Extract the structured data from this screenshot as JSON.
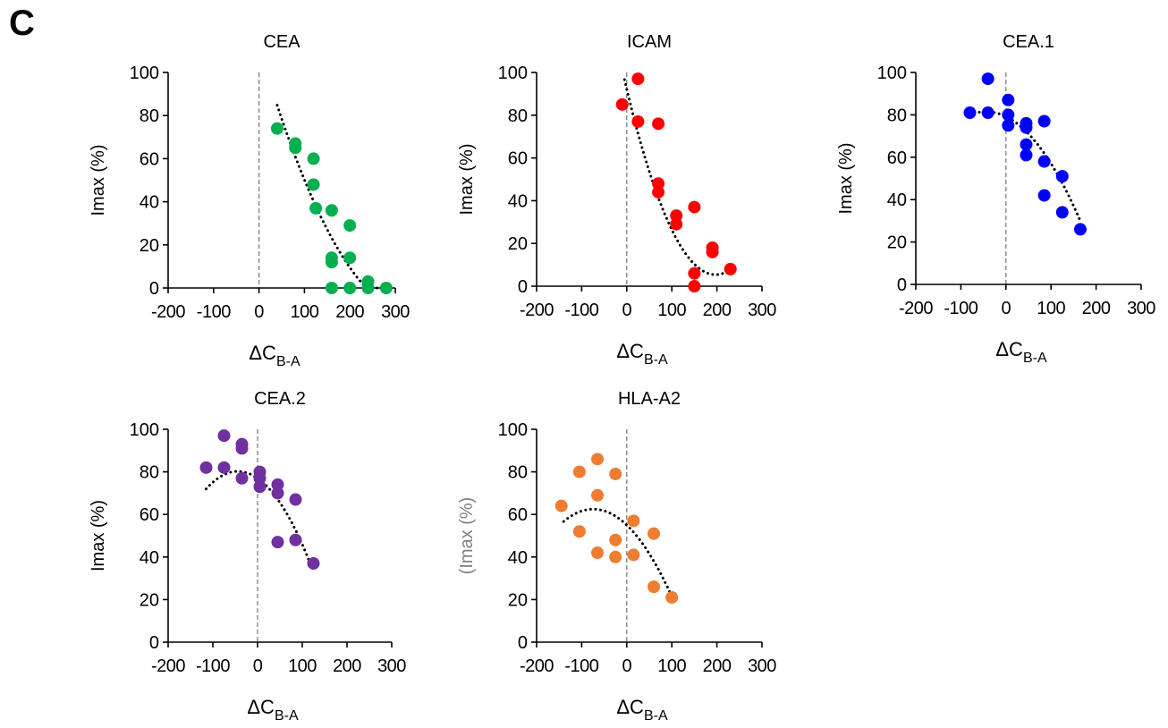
{
  "panel_label": "C",
  "styles": {
    "axis_color": "#000000",
    "zero_line_color": "#7f7f7f",
    "trend_color": "#000000"
  },
  "chart_data": [
    {
      "type": "scatter",
      "title": "CEA",
      "xlabel_main": "ΔC",
      "xlabel_sub": "B-A",
      "ylabel": "Imax (%)",
      "xlim": [
        -200,
        300
      ],
      "ylim": [
        0,
        100
      ],
      "xticks": [
        -200,
        -100,
        0,
        100,
        200,
        300
      ],
      "xtick_labels": [
        "-200",
        "-100",
        "0",
        "100",
        "200",
        "300"
      ],
      "yticks": [
        0,
        20,
        40,
        60,
        80,
        100
      ],
      "ytick_labels": [
        "0",
        "20",
        "40",
        "60",
        "80",
        "100"
      ],
      "color": "#00b050",
      "zero_line": true,
      "grid": false,
      "legend": "none",
      "points": [
        {
          "x": 40,
          "y": 74
        },
        {
          "x": 80,
          "y": 67
        },
        {
          "x": 80,
          "y": 65
        },
        {
          "x": 120,
          "y": 60
        },
        {
          "x": 120,
          "y": 48
        },
        {
          "x": 125,
          "y": 37
        },
        {
          "x": 160,
          "y": 36
        },
        {
          "x": 160,
          "y": 14
        },
        {
          "x": 160,
          "y": 12
        },
        {
          "x": 160,
          "y": 0
        },
        {
          "x": 200,
          "y": 29
        },
        {
          "x": 200,
          "y": 14
        },
        {
          "x": 200,
          "y": 0
        },
        {
          "x": 240,
          "y": 3
        },
        {
          "x": 240,
          "y": 0
        },
        {
          "x": 280,
          "y": 0
        }
      ],
      "trend": {
        "type": "polynomial",
        "coef": [
          112.15,
          -0.7257,
          0.001062
        ],
        "x_range": [
          40,
          260
        ]
      }
    },
    {
      "type": "scatter",
      "title": "ICAM",
      "xlabel_main": "ΔC",
      "xlabel_sub": "B-A",
      "ylabel": "Imax (%)",
      "xlim": [
        -200,
        300
      ],
      "ylim": [
        0,
        100
      ],
      "xticks": [
        -200,
        -100,
        0,
        100,
        200,
        300
      ],
      "xtick_labels": [
        "-200",
        "-100",
        "0",
        "100",
        "200",
        "300"
      ],
      "yticks": [
        0,
        20,
        40,
        60,
        80,
        100
      ],
      "ytick_labels": [
        "0",
        "20",
        "40",
        "60",
        "80",
        "100"
      ],
      "color": "#ff0000",
      "zero_line": true,
      "grid": false,
      "legend": "none",
      "points": [
        {
          "x": -10,
          "y": 85
        },
        {
          "x": 25,
          "y": 97
        },
        {
          "x": 25,
          "y": 77
        },
        {
          "x": 70,
          "y": 76
        },
        {
          "x": 70,
          "y": 48
        },
        {
          "x": 70,
          "y": 44
        },
        {
          "x": 110,
          "y": 33
        },
        {
          "x": 110,
          "y": 29
        },
        {
          "x": 150,
          "y": 37
        },
        {
          "x": 150,
          "y": 6
        },
        {
          "x": 150,
          "y": 0
        },
        {
          "x": 190,
          "y": 18
        },
        {
          "x": 190,
          "y": 16
        },
        {
          "x": 230,
          "y": 8
        }
      ],
      "trend": {
        "type": "polynomial",
        "coef": [
          92.2,
          -0.882,
          0.00224
        ],
        "x_range": [
          -5,
          225
        ]
      }
    },
    {
      "type": "scatter",
      "title": "CEA.1",
      "xlabel_main": "ΔC",
      "xlabel_sub": "B-A",
      "ylabel": "Imax (%)",
      "xlim": [
        -200,
        300
      ],
      "ylim": [
        0,
        100
      ],
      "xticks": [
        -200,
        -100,
        0,
        100,
        200,
        300
      ],
      "xtick_labels": [
        "-200",
        "-100",
        "0",
        "100",
        "200",
        "300"
      ],
      "yticks": [
        0,
        20,
        40,
        60,
        80,
        100
      ],
      "ytick_labels": [
        "0",
        "20",
        "40",
        "60",
        "80",
        "100"
      ],
      "color": "#0000ff",
      "zero_line": true,
      "grid": false,
      "legend": "none",
      "points": [
        {
          "x": -80,
          "y": 81
        },
        {
          "x": -40,
          "y": 97
        },
        {
          "x": -40,
          "y": 81
        },
        {
          "x": 5,
          "y": 87
        },
        {
          "x": 5,
          "y": 80
        },
        {
          "x": 5,
          "y": 75
        },
        {
          "x": 45,
          "y": 76
        },
        {
          "x": 45,
          "y": 74
        },
        {
          "x": 45,
          "y": 66
        },
        {
          "x": 45,
          "y": 61
        },
        {
          "x": 85,
          "y": 77
        },
        {
          "x": 85,
          "y": 58
        },
        {
          "x": 85,
          "y": 42
        },
        {
          "x": 125,
          "y": 51
        },
        {
          "x": 125,
          "y": 34
        },
        {
          "x": 165,
          "y": 26
        }
      ],
      "trend": {
        "type": "polynomial",
        "coef": [
          79.2,
          -0.104,
          -0.00118
        ],
        "x_range": [
          -70,
          165
        ]
      }
    },
    {
      "type": "scatter",
      "title": "CEA.2",
      "xlabel_main": "ΔC",
      "xlabel_sub": "B-A",
      "ylabel": "Imax (%)",
      "xlim": [
        -200,
        300
      ],
      "ylim": [
        0,
        100
      ],
      "xticks": [
        -200,
        -100,
        0,
        100,
        200,
        300
      ],
      "xtick_labels": [
        "-200",
        "-100",
        "0",
        "100",
        "200",
        "300"
      ],
      "yticks": [
        0,
        20,
        40,
        60,
        80,
        100
      ],
      "ytick_labels": [
        "0",
        "20",
        "40",
        "60",
        "80",
        "100"
      ],
      "color": "#7030a0",
      "zero_line": true,
      "grid": false,
      "legend": "none",
      "points": [
        {
          "x": -115,
          "y": 82
        },
        {
          "x": -75,
          "y": 97
        },
        {
          "x": -75,
          "y": 82
        },
        {
          "x": -35,
          "y": 93
        },
        {
          "x": -35,
          "y": 91
        },
        {
          "x": -35,
          "y": 77
        },
        {
          "x": 5,
          "y": 80
        },
        {
          "x": 5,
          "y": 77
        },
        {
          "x": 5,
          "y": 73
        },
        {
          "x": 45,
          "y": 74
        },
        {
          "x": 45,
          "y": 70
        },
        {
          "x": 45,
          "y": 47
        },
        {
          "x": 85,
          "y": 67
        },
        {
          "x": 85,
          "y": 48
        },
        {
          "x": 125,
          "y": 37
        }
      ],
      "trend": {
        "type": "polynomial",
        "coef": [
          77.0,
          -0.146,
          -0.00165
        ],
        "x_range": [
          -115,
          120
        ]
      }
    },
    {
      "type": "scatter",
      "title": "HLA-A2",
      "xlabel_main": "ΔC",
      "xlabel_sub": "B-A",
      "ylabel": "(Imax (%)",
      "xlim": [
        -200,
        300
      ],
      "ylim": [
        0,
        100
      ],
      "xticks": [
        -200,
        -100,
        0,
        100,
        200,
        300
      ],
      "xtick_labels": [
        "-200",
        "-100",
        "0",
        "100",
        "200",
        "300"
      ],
      "yticks": [
        0,
        20,
        40,
        60,
        80,
        100
      ],
      "ytick_labels": [
        "0",
        "20",
        "40",
        "60",
        "80",
        "100"
      ],
      "color": "#ed7d31",
      "zero_line": true,
      "grid": false,
      "legend": "none",
      "ylabel_color": "#808080",
      "points": [
        {
          "x": -145,
          "y": 64
        },
        {
          "x": -105,
          "y": 80
        },
        {
          "x": -105,
          "y": 52
        },
        {
          "x": -65,
          "y": 86
        },
        {
          "x": -65,
          "y": 69
        },
        {
          "x": -65,
          "y": 42
        },
        {
          "x": -25,
          "y": 79
        },
        {
          "x": -25,
          "y": 48
        },
        {
          "x": -25,
          "y": 40
        },
        {
          "x": 15,
          "y": 57
        },
        {
          "x": 15,
          "y": 41
        },
        {
          "x": 60,
          "y": 51
        },
        {
          "x": 60,
          "y": 26
        },
        {
          "x": 100,
          "y": 21
        }
      ],
      "trend": {
        "type": "polynomial",
        "coef": [
          55.0,
          -0.201,
          -0.00135
        ],
        "x_range": [
          -140,
          100
        ]
      }
    }
  ]
}
